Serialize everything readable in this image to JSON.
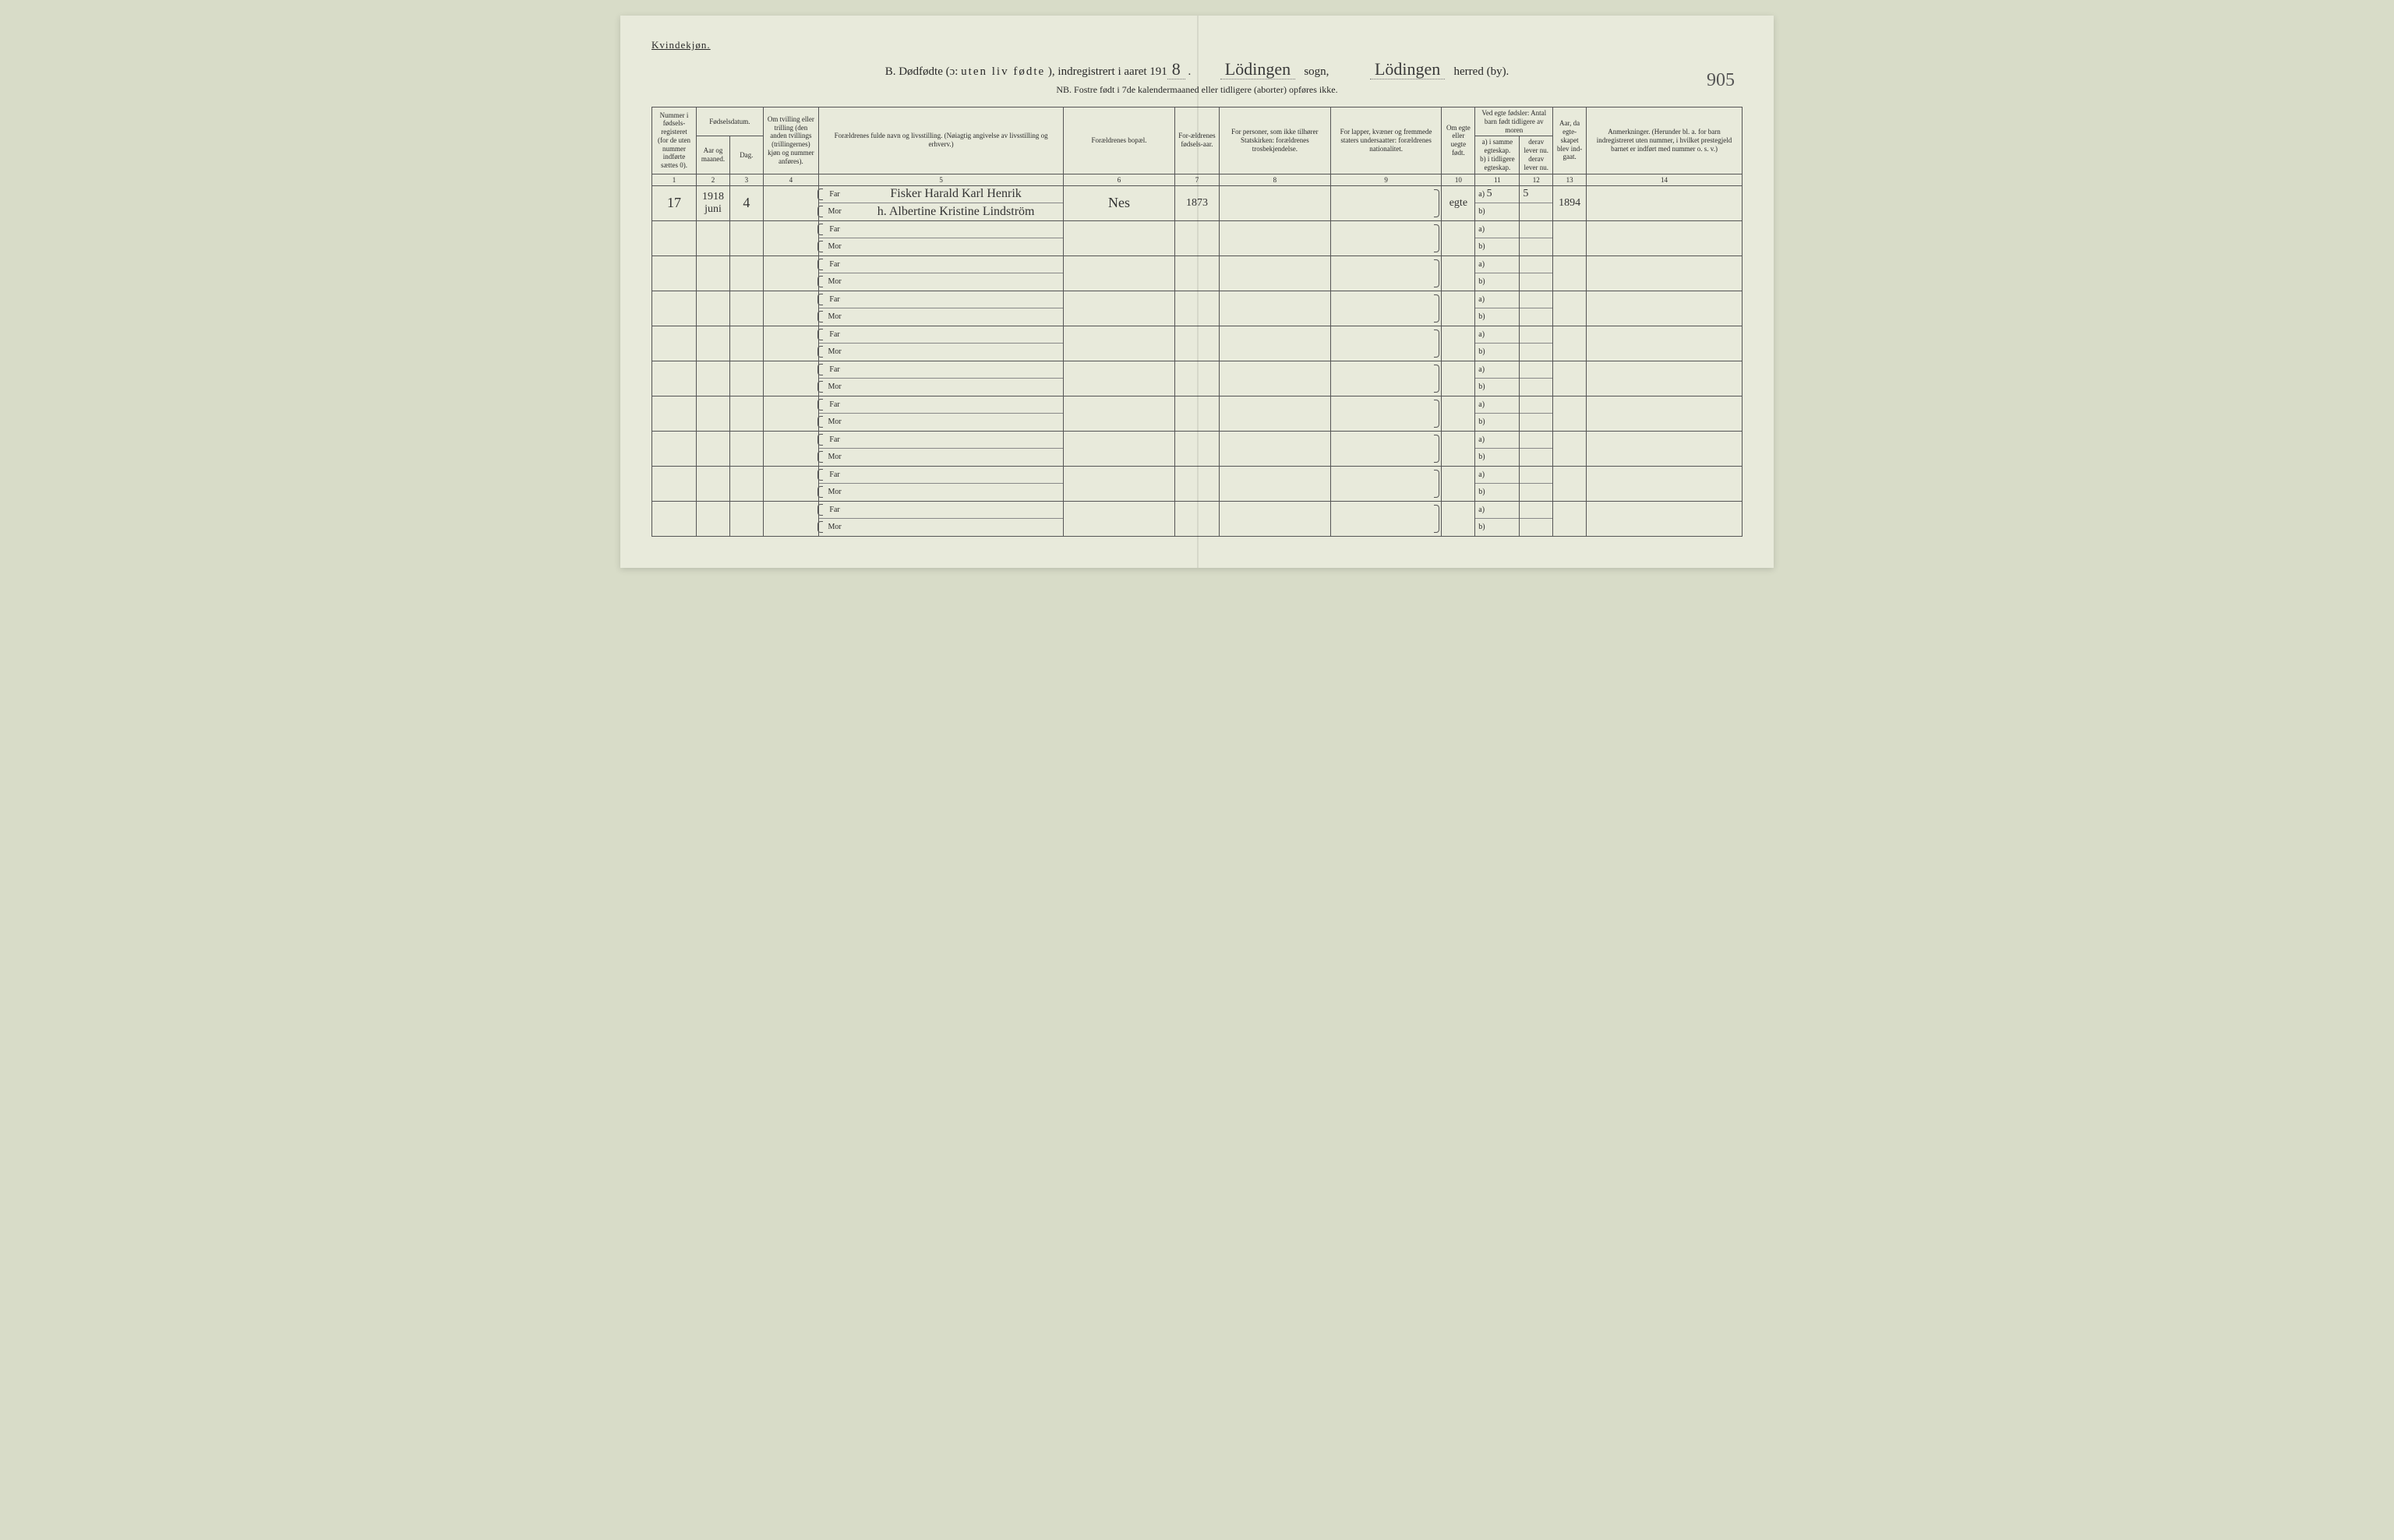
{
  "header": {
    "gender_label": "Kvindekjøn.",
    "title_prefix": "B.  Dødfødte (ɔ:",
    "title_spaced": "uten liv fødte",
    "title_suffix": "), indregistrert i aaret 191",
    "year_digit": "8",
    "sogn_value": "Lödingen",
    "sogn_label": "sogn,",
    "herred_value": "Lödingen",
    "herred_label": "herred (by).",
    "nb": "NB.  Fostre født i 7de kalendermaaned eller tidligere (aborter) opføres ikke.",
    "page_number": "905"
  },
  "columns": {
    "c1": "Nummer i fødsels-registeret (for de uten nummer indførte sættes 0).",
    "c2_group": "Fødselsdatum.",
    "c2a": "Aar og maaned.",
    "c2b": "Dag.",
    "c4": "Om tvilling eller trilling (den anden tvillings (trillingernes) kjøn og nummer anføres).",
    "c5": "Forældrenes fulde navn og livsstilling. (Nøiagtig angivelse av livsstilling og erhverv.)",
    "c6": "Forældrenes bopæl.",
    "c7": "For-ældrenes fødsels-aar.",
    "c8": "For personer, som ikke tilhører Statskirken: forældrenes trosbekjendelse.",
    "c9": "For lapper, kvæner og fremmede staters undersaatter: forældrenes nationalitet.",
    "c10": "Om egte eller uegte født.",
    "c11_group": "Ved egte fødsler: Antal barn født tidligere av moren",
    "c11a": "a) i samme egteskap.",
    "c11b": "b) i tidligere egteskap.",
    "c12a": "derav lever nu.",
    "c12b": "derav lever nu.",
    "c13": "Aar, da egte-skapet blev ind-gaat.",
    "c14": "Anmerkninger. (Herunder bl. a. for barn indregistreret uten nummer, i hvilket prestegjeld barnet er indført med nummer o. s. v.)"
  },
  "colnums": [
    "1",
    "2",
    "3",
    "4",
    "5",
    "6",
    "7",
    "8",
    "9",
    "10",
    "11",
    "12",
    "13",
    "14"
  ],
  "labels": {
    "far": "Far",
    "mor": "Mor",
    "a": "a)",
    "b": "b)"
  },
  "rows": [
    {
      "num": "17",
      "year": "1918",
      "month": "juni",
      "day": "4",
      "far": "Fisker Harald Karl Henrik",
      "mor": "h. Albertine Kristine Lindström",
      "bopael": "Nes",
      "faar": "1873",
      "egte": "egte",
      "a_val": "5",
      "a_lev": "5",
      "aar_egte": "1894"
    },
    {},
    {},
    {},
    {},
    {},
    {},
    {},
    {},
    {}
  ]
}
